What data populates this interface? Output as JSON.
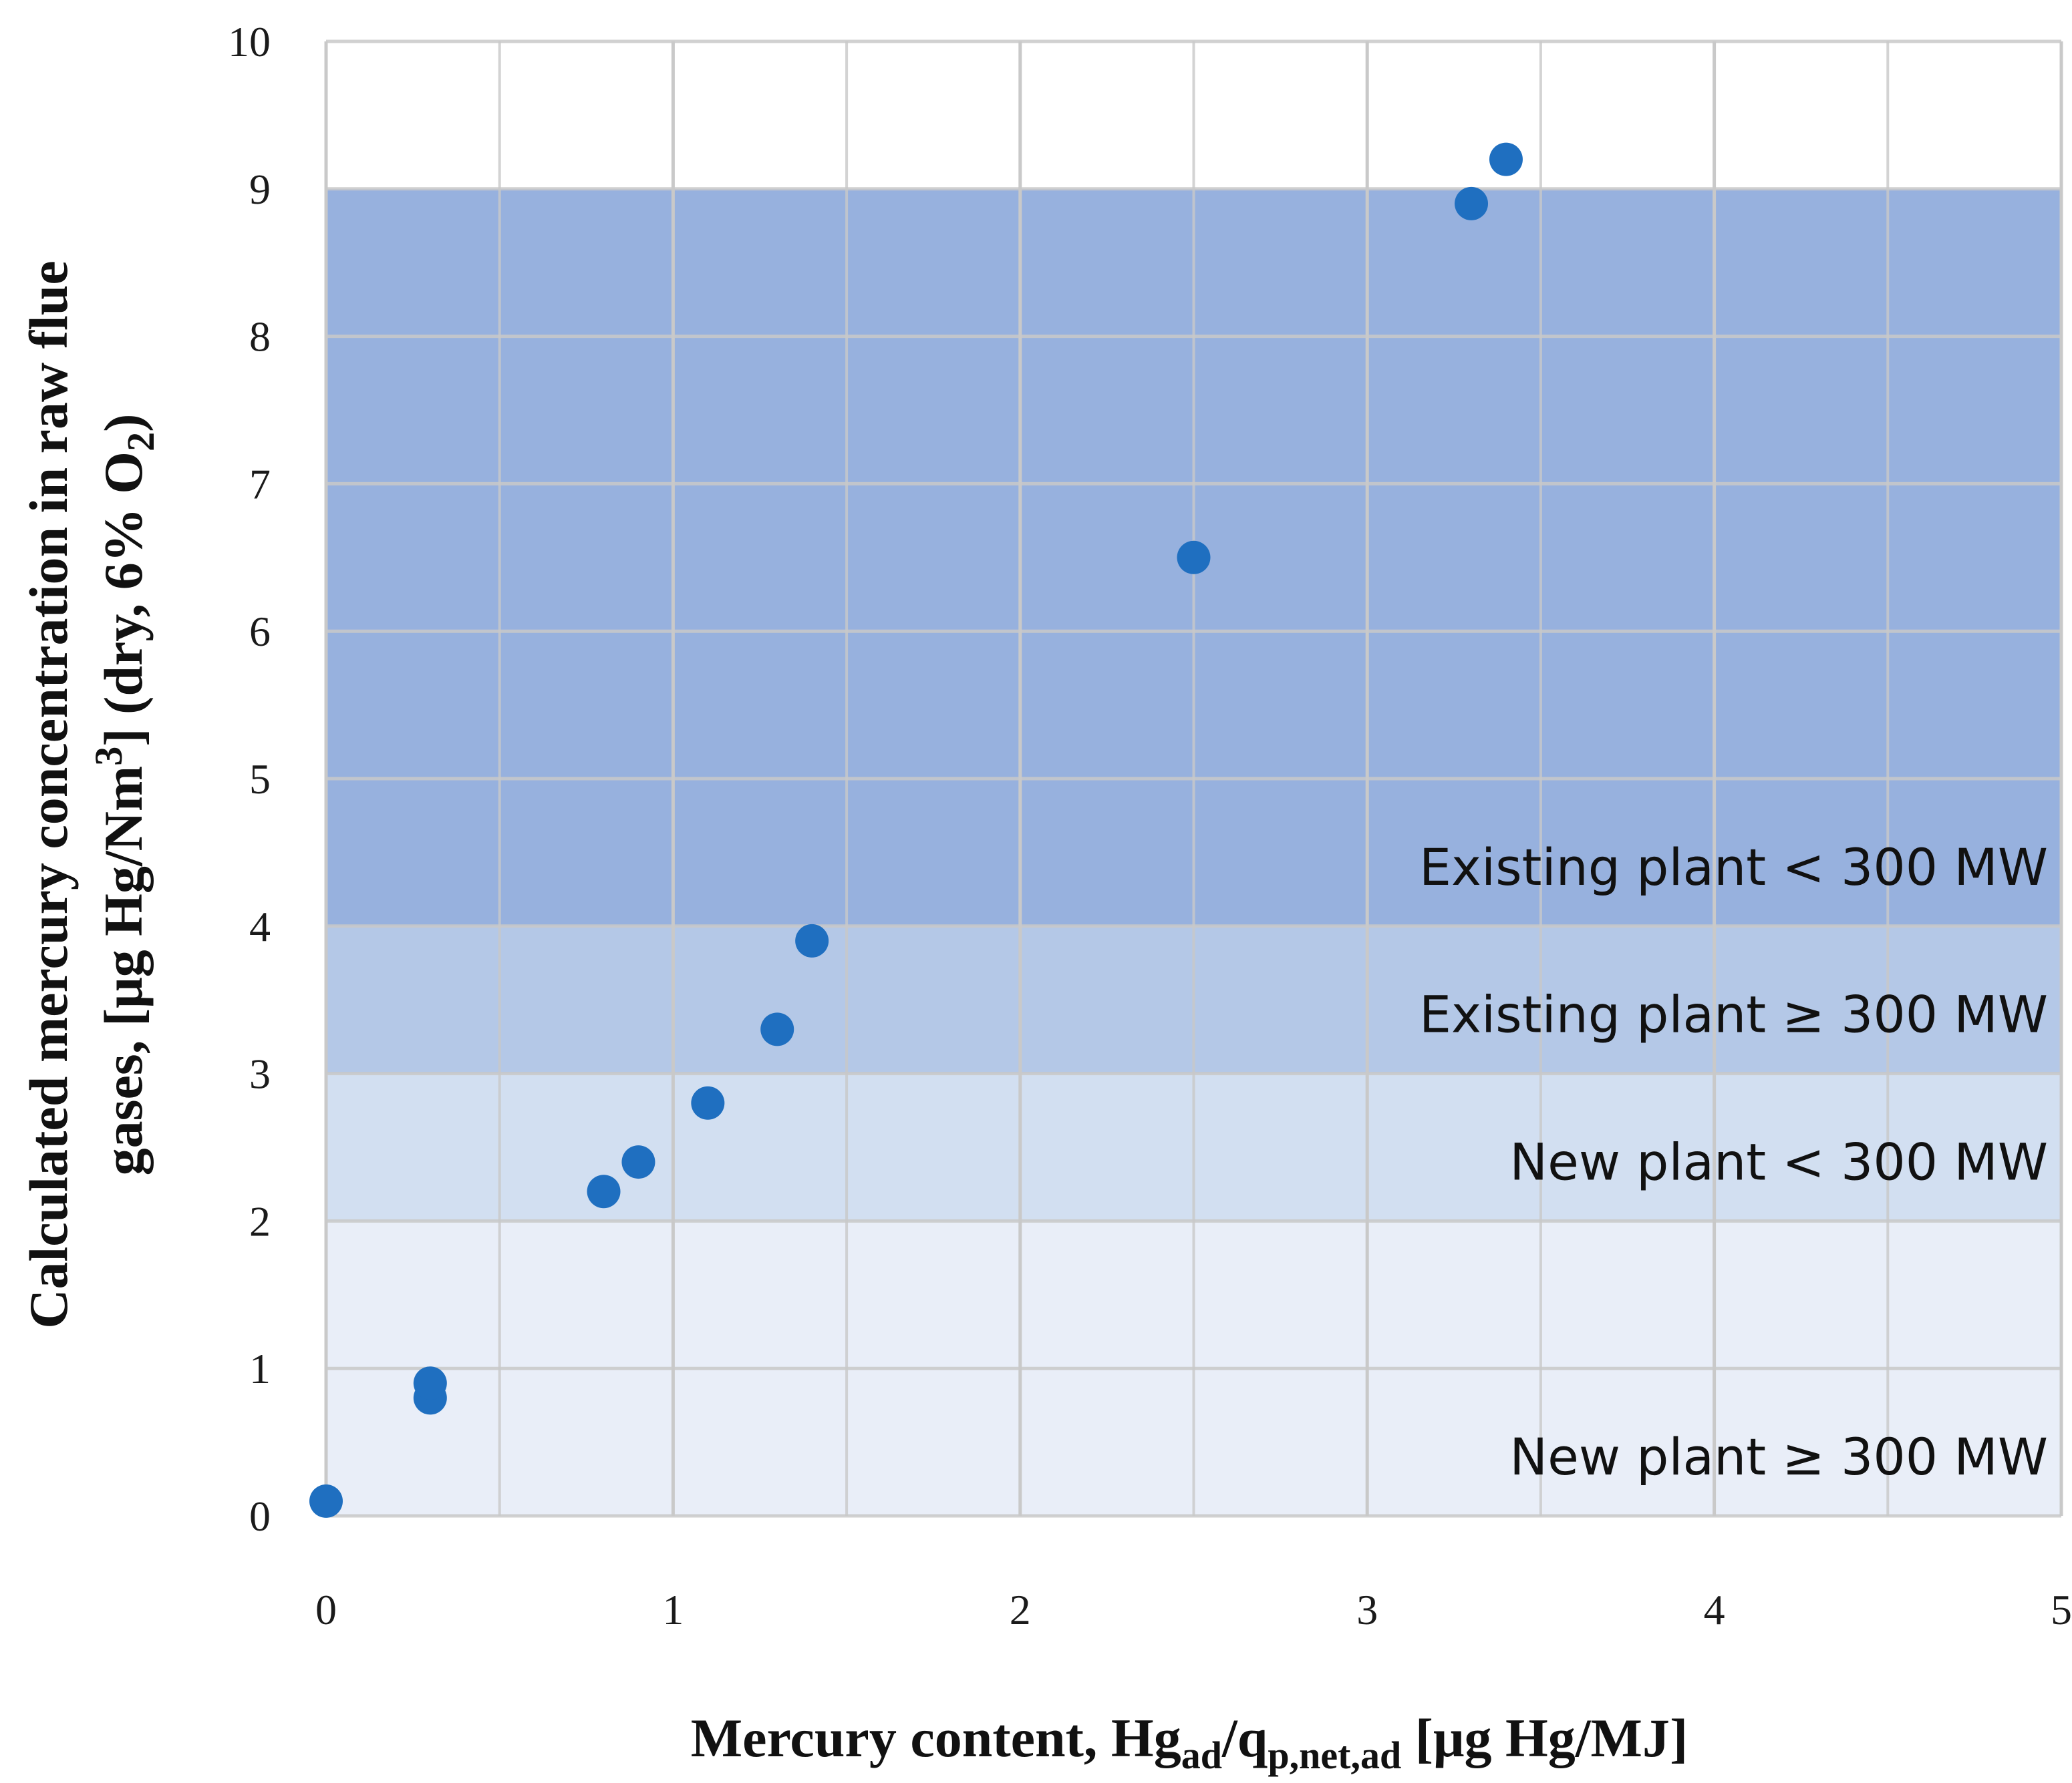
{
  "chart_data": {
    "type": "scatter",
    "xlim": [
      0,
      5
    ],
    "ylim": [
      0,
      10
    ],
    "x_ticks": [
      "0",
      "1",
      "2",
      "3",
      "4",
      "5"
    ],
    "y_ticks": [
      "0",
      "1",
      "2",
      "3",
      "4",
      "5",
      "6",
      "7",
      "8",
      "9",
      "10"
    ],
    "grid": true,
    "xlabel": {
      "main": "Mercury content, Hg",
      "sub1": "ad",
      "mid": "/q",
      "sub2": "p,net,ad",
      "tail": " [μg Hg/MJ]"
    },
    "ylabel": {
      "line1": "Calculated mercury concentration in raw flue",
      "line2_a": "gases,  [μg Hg/Nm",
      "line2_sup": "3",
      "line2_b": "] (dry, 6% O",
      "line2_sub": "2",
      "line2_c": ")"
    },
    "bands": [
      {
        "label": "New plant ≥ 300 MW",
        "y0": 0,
        "y1": 2,
        "color": "#e9eef8"
      },
      {
        "label": "New plant < 300 MW",
        "y0": 2,
        "y1": 3,
        "color": "#d2dff1"
      },
      {
        "label": "Existing plant ≥ 300 MW",
        "y0": 3,
        "y1": 4,
        "color": "#b4c8e7"
      },
      {
        "label": "Existing plant < 300 MW",
        "y0": 4,
        "y1": 9,
        "color": "#97b1de"
      }
    ],
    "series": [
      {
        "marker_color": "#1f6fc0",
        "points": [
          {
            "x": 0.0,
            "y": 0.1
          },
          {
            "x": 0.3,
            "y": 0.8
          },
          {
            "x": 0.3,
            "y": 0.9
          },
          {
            "x": 0.8,
            "y": 2.2
          },
          {
            "x": 0.9,
            "y": 2.4
          },
          {
            "x": 1.1,
            "y": 2.8
          },
          {
            "x": 1.3,
            "y": 3.3
          },
          {
            "x": 1.4,
            "y": 3.9
          },
          {
            "x": 2.5,
            "y": 6.5
          },
          {
            "x": 3.3,
            "y": 8.9
          },
          {
            "x": 3.4,
            "y": 9.2
          }
        ]
      }
    ]
  }
}
